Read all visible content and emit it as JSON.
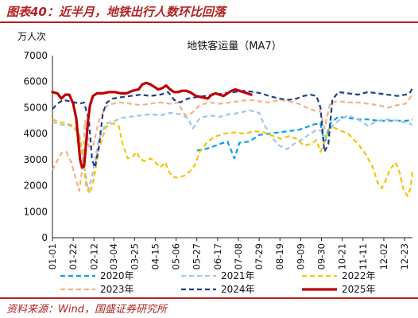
{
  "header": {
    "title": "图表40：近半月，地铁出行人数环比回落"
  },
  "footer": {
    "source": "资料来源：Wind，国盛证券研究所"
  },
  "chart_data": {
    "type": "line",
    "title": "地铁客运量（MA7）",
    "ylabel": "万人次",
    "xlabel": "",
    "ylim": [
      0,
      7000
    ],
    "yticks": [
      0,
      1000,
      2000,
      3000,
      4000,
      5000,
      6000,
      7000
    ],
    "x_domain": [
      1,
      365
    ],
    "x_ticks": [
      {
        "label": "01-01",
        "day": 1
      },
      {
        "label": "01-22",
        "day": 22
      },
      {
        "label": "02-12",
        "day": 43
      },
      {
        "label": "03-04",
        "day": 63
      },
      {
        "label": "03-25",
        "day": 84
      },
      {
        "label": "04-15",
        "day": 105
      },
      {
        "label": "05-06",
        "day": 126
      },
      {
        "label": "05-27",
        "day": 147
      },
      {
        "label": "06-17",
        "day": 168
      },
      {
        "label": "07-08",
        "day": 189
      },
      {
        "label": "07-29",
        "day": 210
      },
      {
        "label": "08-19",
        "day": 231
      },
      {
        "label": "09-09",
        "day": 252
      },
      {
        "label": "09-30",
        "day": 273
      },
      {
        "label": "10-21",
        "day": 294
      },
      {
        "label": "11-11",
        "day": 315
      },
      {
        "label": "12-02",
        "day": 336
      },
      {
        "label": "12-23",
        "day": 357
      }
    ],
    "grid": false,
    "legend": "bottom",
    "series": [
      {
        "name": "2020年",
        "color": "#00a0e9",
        "dash": "6,4",
        "width": 2.2,
        "points": [
          [
            147,
            3350
          ],
          [
            160,
            3450
          ],
          [
            170,
            3600
          ],
          [
            178,
            3700
          ],
          [
            185,
            3050
          ],
          [
            190,
            3650
          ],
          [
            200,
            3700
          ],
          [
            210,
            3950
          ],
          [
            220,
            4000
          ],
          [
            230,
            4050
          ],
          [
            240,
            4100
          ],
          [
            250,
            4150
          ],
          [
            258,
            4250
          ],
          [
            265,
            4350
          ],
          [
            272,
            4400
          ],
          [
            276,
            3600
          ],
          [
            282,
            4400
          ],
          [
            290,
            4650
          ],
          [
            300,
            4600
          ],
          [
            310,
            4550
          ],
          [
            320,
            4550
          ],
          [
            330,
            4500
          ],
          [
            340,
            4500
          ],
          [
            350,
            4500
          ],
          [
            360,
            4500
          ],
          [
            365,
            4550
          ]
        ]
      },
      {
        "name": "2021年",
        "color": "#a3c4e6",
        "dash": "6,4",
        "width": 2.2,
        "points": [
          [
            1,
            4450
          ],
          [
            10,
            4350
          ],
          [
            20,
            4300
          ],
          [
            28,
            4000
          ],
          [
            33,
            2800
          ],
          [
            37,
            1800
          ],
          [
            42,
            2500
          ],
          [
            48,
            3800
          ],
          [
            55,
            4400
          ],
          [
            62,
            4450
          ],
          [
            70,
            4600
          ],
          [
            80,
            4650
          ],
          [
            90,
            4700
          ],
          [
            100,
            4750
          ],
          [
            110,
            4700
          ],
          [
            120,
            4800
          ],
          [
            130,
            4750
          ],
          [
            138,
            4600
          ],
          [
            143,
            4200
          ],
          [
            150,
            4600
          ],
          [
            160,
            4700
          ],
          [
            170,
            4650
          ],
          [
            180,
            4750
          ],
          [
            190,
            4800
          ],
          [
            200,
            4900
          ],
          [
            210,
            4800
          ],
          [
            215,
            4350
          ],
          [
            222,
            3900
          ],
          [
            230,
            3550
          ],
          [
            238,
            3400
          ],
          [
            245,
            3600
          ],
          [
            252,
            3750
          ],
          [
            260,
            3950
          ],
          [
            268,
            4150
          ],
          [
            274,
            4100
          ],
          [
            278,
            3800
          ],
          [
            284,
            4300
          ],
          [
            290,
            4500
          ],
          [
            300,
            4700
          ],
          [
            310,
            4550
          ],
          [
            320,
            4300
          ],
          [
            330,
            4500
          ],
          [
            340,
            4550
          ],
          [
            350,
            4500
          ],
          [
            360,
            4400
          ],
          [
            365,
            4350
          ]
        ]
      },
      {
        "name": "2022年",
        "color": "#f5c400",
        "dash": "6,4",
        "width": 2.2,
        "points": [
          [
            1,
            4550
          ],
          [
            8,
            4450
          ],
          [
            15,
            4400
          ],
          [
            22,
            4300
          ],
          [
            28,
            4000
          ],
          [
            32,
            3000
          ],
          [
            35,
            2000
          ],
          [
            39,
            1700
          ],
          [
            43,
            2300
          ],
          [
            48,
            3400
          ],
          [
            55,
            4250
          ],
          [
            62,
            4400
          ],
          [
            68,
            4300
          ],
          [
            72,
            3600
          ],
          [
            77,
            3050
          ],
          [
            82,
            3100
          ],
          [
            86,
            3300
          ],
          [
            90,
            3000
          ],
          [
            95,
            2950
          ],
          [
            100,
            3050
          ],
          [
            105,
            2900
          ],
          [
            110,
            2700
          ],
          [
            115,
            2900
          ],
          [
            118,
            2600
          ],
          [
            122,
            2350
          ],
          [
            128,
            2300
          ],
          [
            135,
            2400
          ],
          [
            140,
            2550
          ],
          [
            145,
            2800
          ],
          [
            150,
            3300
          ],
          [
            158,
            3700
          ],
          [
            166,
            3900
          ],
          [
            175,
            4000
          ],
          [
            185,
            4050
          ],
          [
            195,
            4000
          ],
          [
            205,
            4100
          ],
          [
            215,
            4050
          ],
          [
            225,
            3900
          ],
          [
            232,
            3800
          ],
          [
            240,
            3900
          ],
          [
            248,
            3800
          ],
          [
            255,
            3550
          ],
          [
            262,
            3600
          ],
          [
            268,
            3750
          ],
          [
            272,
            3300
          ],
          [
            276,
            3700
          ],
          [
            282,
            4300
          ],
          [
            290,
            4150
          ],
          [
            300,
            4000
          ],
          [
            310,
            3600
          ],
          [
            318,
            3200
          ],
          [
            325,
            2700
          ],
          [
            330,
            2100
          ],
          [
            334,
            1900
          ],
          [
            338,
            2200
          ],
          [
            342,
            2600
          ],
          [
            348,
            2900
          ],
          [
            352,
            2500
          ],
          [
            356,
            1850
          ],
          [
            360,
            1600
          ],
          [
            363,
            1900
          ],
          [
            365,
            2550
          ]
        ]
      },
      {
        "name": "2023年",
        "color": "#f4b183",
        "dash": "6,4",
        "width": 2.2,
        "points": [
          [
            1,
            2600
          ],
          [
            5,
            2900
          ],
          [
            10,
            3250
          ],
          [
            15,
            3300
          ],
          [
            20,
            2900
          ],
          [
            25,
            2200
          ],
          [
            28,
            1800
          ],
          [
            31,
            2600
          ],
          [
            34,
            4500
          ],
          [
            38,
            3500
          ],
          [
            42,
            3500
          ],
          [
            48,
            4500
          ],
          [
            55,
            5050
          ],
          [
            62,
            5150
          ],
          [
            70,
            5200
          ],
          [
            80,
            5150
          ],
          [
            90,
            5100
          ],
          [
            100,
            5150
          ],
          [
            110,
            5200
          ],
          [
            120,
            5150
          ],
          [
            128,
            5200
          ],
          [
            135,
            4700
          ],
          [
            142,
            4800
          ],
          [
            150,
            5100
          ],
          [
            160,
            5200
          ],
          [
            170,
            5150
          ],
          [
            180,
            5200
          ],
          [
            190,
            5250
          ],
          [
            200,
            5300
          ],
          [
            210,
            5250
          ],
          [
            220,
            5200
          ],
          [
            230,
            5300
          ],
          [
            240,
            5250
          ],
          [
            250,
            5150
          ],
          [
            258,
            5000
          ],
          [
            265,
            4900
          ],
          [
            272,
            4850
          ],
          [
            276,
            4200
          ],
          [
            282,
            5200
          ],
          [
            290,
            5250
          ],
          [
            300,
            5200
          ],
          [
            310,
            5200
          ],
          [
            320,
            5150
          ],
          [
            330,
            5100
          ],
          [
            340,
            5000
          ],
          [
            350,
            5100
          ],
          [
            358,
            5150
          ],
          [
            365,
            5500
          ]
        ]
      },
      {
        "name": "2024年",
        "color": "#1f3f8a",
        "dash": "6,4",
        "width": 2.2,
        "points": [
          [
            1,
            4950
          ],
          [
            6,
            5150
          ],
          [
            12,
            5300
          ],
          [
            18,
            5250
          ],
          [
            24,
            5200
          ],
          [
            28,
            5150
          ],
          [
            33,
            5200
          ],
          [
            38,
            4500
          ],
          [
            41,
            3000
          ],
          [
            44,
            2700
          ],
          [
            48,
            3500
          ],
          [
            52,
            4800
          ],
          [
            56,
            5200
          ],
          [
            62,
            5350
          ],
          [
            70,
            5400
          ],
          [
            80,
            5450
          ],
          [
            90,
            5500
          ],
          [
            100,
            5450
          ],
          [
            110,
            5500
          ],
          [
            118,
            5600
          ],
          [
            124,
            5300
          ],
          [
            130,
            5200
          ],
          [
            138,
            5350
          ],
          [
            146,
            5400
          ],
          [
            155,
            5450
          ],
          [
            165,
            5500
          ],
          [
            175,
            5550
          ],
          [
            185,
            5600
          ],
          [
            195,
            5650
          ],
          [
            205,
            5600
          ],
          [
            212,
            5550
          ],
          [
            220,
            5450
          ],
          [
            230,
            5350
          ],
          [
            240,
            5300
          ],
          [
            248,
            5350
          ],
          [
            255,
            5450
          ],
          [
            262,
            5500
          ],
          [
            268,
            5450
          ],
          [
            272,
            5000
          ],
          [
            276,
            3300
          ],
          [
            280,
            3600
          ],
          [
            284,
            5300
          ],
          [
            290,
            5600
          ],
          [
            300,
            5550
          ],
          [
            310,
            5500
          ],
          [
            320,
            5600
          ],
          [
            330,
            5550
          ],
          [
            340,
            5500
          ],
          [
            350,
            5450
          ],
          [
            358,
            5500
          ],
          [
            362,
            5550
          ],
          [
            365,
            5750
          ]
        ]
      },
      {
        "name": "2025年",
        "color": "#c00000",
        "dash": "",
        "width": 3.2,
        "points": [
          [
            1,
            5600
          ],
          [
            6,
            5550
          ],
          [
            10,
            5350
          ],
          [
            14,
            5500
          ],
          [
            18,
            5500
          ],
          [
            22,
            5150
          ],
          [
            25,
            4600
          ],
          [
            27,
            3800
          ],
          [
            29,
            3000
          ],
          [
            31,
            2700
          ],
          [
            33,
            2750
          ],
          [
            35,
            3600
          ],
          [
            37,
            4500
          ],
          [
            39,
            5100
          ],
          [
            42,
            5450
          ],
          [
            46,
            5550
          ],
          [
            52,
            5550
          ],
          [
            58,
            5600
          ],
          [
            64,
            5600
          ],
          [
            70,
            5550
          ],
          [
            76,
            5550
          ],
          [
            82,
            5650
          ],
          [
            88,
            5700
          ],
          [
            92,
            5900
          ],
          [
            96,
            5950
          ],
          [
            100,
            5900
          ],
          [
            104,
            5800
          ],
          [
            108,
            5700
          ],
          [
            112,
            5750
          ],
          [
            116,
            5850
          ],
          [
            120,
            5700
          ],
          [
            124,
            5600
          ],
          [
            128,
            5600
          ],
          [
            132,
            5650
          ],
          [
            136,
            5650
          ],
          [
            140,
            5600
          ],
          [
            146,
            5450
          ],
          [
            152,
            5400
          ],
          [
            158,
            5350
          ],
          [
            162,
            5500
          ],
          [
            166,
            5550
          ],
          [
            170,
            5500
          ],
          [
            174,
            5450
          ],
          [
            178,
            5550
          ],
          [
            182,
            5650
          ],
          [
            186,
            5700
          ],
          [
            190,
            5650
          ],
          [
            194,
            5600
          ],
          [
            198,
            5550
          ],
          [
            202,
            5500
          ]
        ]
      }
    ]
  }
}
